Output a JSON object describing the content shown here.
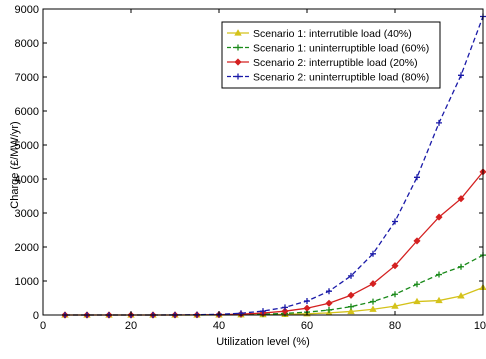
{
  "chart_data": {
    "type": "line",
    "title": "",
    "xlabel": "Utilization level (%)",
    "ylabel": "Charge (£/MW/yr)",
    "xlim": [
      0,
      100
    ],
    "ylim": [
      0,
      9000
    ],
    "xticks": [
      0,
      20,
      40,
      60,
      80,
      100
    ],
    "yticks": [
      0,
      1000,
      2000,
      3000,
      4000,
      5000,
      6000,
      7000,
      8000,
      9000
    ],
    "grid": false,
    "legend_position": "top-right",
    "x": [
      5,
      10,
      15,
      20,
      25,
      30,
      35,
      40,
      45,
      50,
      55,
      60,
      65,
      70,
      75,
      80,
      85,
      90,
      95,
      100
    ],
    "series": [
      {
        "name": "Scenario 1: interrutible load (40%)",
        "color": "#d4c21a",
        "marker": "triangle",
        "line_style": "solid",
        "values": [
          0,
          0,
          0,
          0,
          0,
          0,
          1,
          2,
          5,
          10,
          19,
          35,
          62,
          104,
          168,
          262,
          395,
          425,
          560,
          810
        ]
      },
      {
        "name": "Scenario 1: uninterruptible load (60%)",
        "color": "#1a8a1a",
        "marker": "plus",
        "line_style": "dashed",
        "values": [
          0,
          0,
          0,
          0,
          0,
          0,
          2,
          4,
          11,
          24,
          46,
          84,
          146,
          245,
          395,
          610,
          905,
          1190,
          1420,
          1760
        ]
      },
      {
        "name": "Scenario 2: interruptible load (20%)",
        "color": "#d42020",
        "marker": "diamond",
        "line_style": "solid",
        "values": [
          0,
          0,
          0,
          0,
          0,
          1,
          4,
          10,
          26,
          58,
          112,
          200,
          345,
          580,
          920,
          1450,
          2180,
          2880,
          3420,
          4210
        ]
      },
      {
        "name": "Scenario 2: uninterruptible load (80%)",
        "color": "#1a1aa8",
        "marker": "plus",
        "line_style": "dashed",
        "values": [
          0,
          0,
          0,
          0,
          0,
          2,
          8,
          20,
          52,
          115,
          225,
          410,
          700,
          1150,
          1800,
          2750,
          4050,
          5650,
          7050,
          8780
        ]
      }
    ]
  }
}
